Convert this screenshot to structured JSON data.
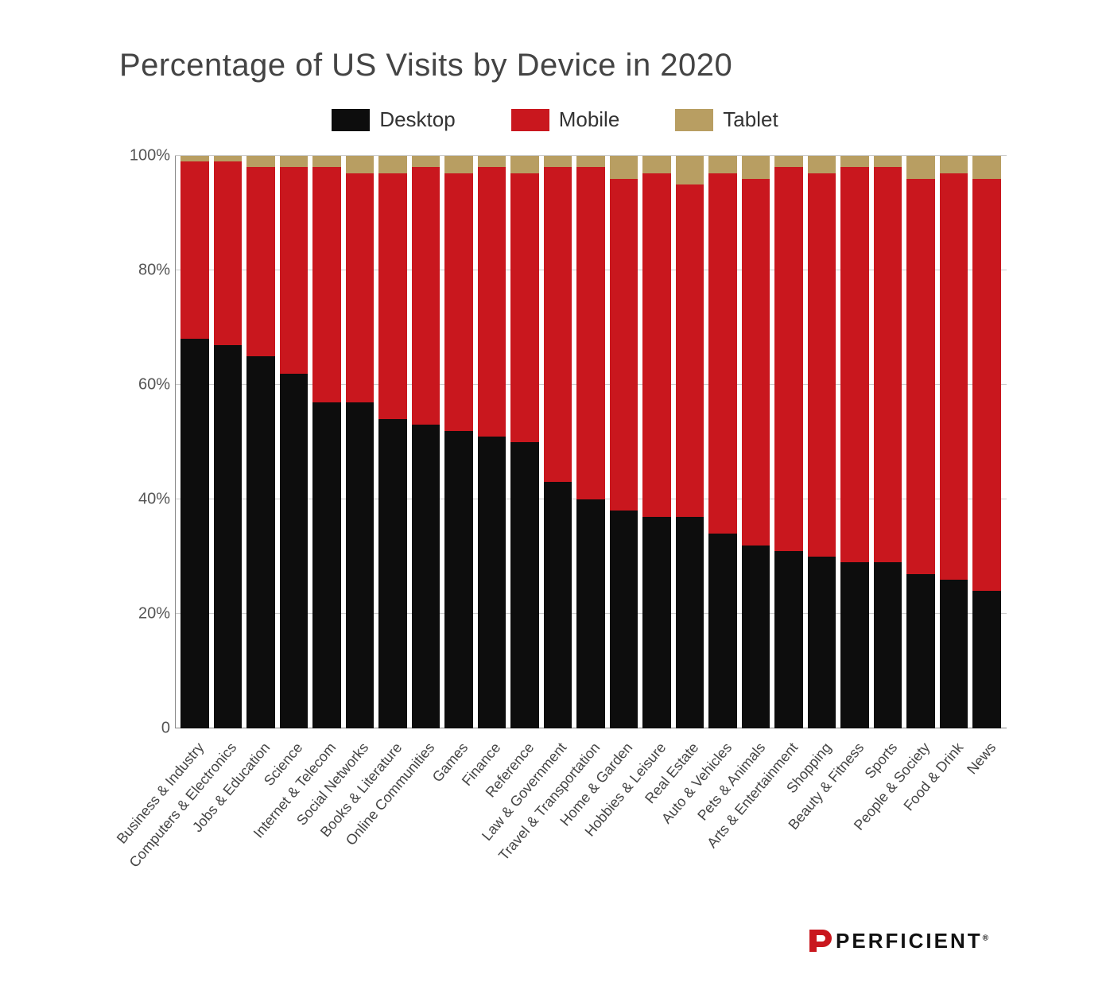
{
  "chart": {
    "type": "stacked-bar",
    "title": "Percentage of US Visits by Device in 2020",
    "title_fontsize": 40,
    "title_color": "#444444",
    "background_color": "#ffffff",
    "grid_color": "#cccccc",
    "axis_color": "#888888",
    "label_fontsize": 18,
    "label_color": "#444444",
    "tick_fontsize": 20,
    "bar_width_ratio": 0.9,
    "ylim": [
      0,
      100
    ],
    "ytick_step": 20,
    "yticks": [
      "0",
      "20%",
      "40%",
      "60%",
      "80%",
      "100%"
    ],
    "x_label_rotation_deg": -50,
    "series": [
      {
        "key": "desktop",
        "label": "Desktop",
        "color": "#0d0d0d"
      },
      {
        "key": "mobile",
        "label": "Mobile",
        "color": "#c9171e"
      },
      {
        "key": "tablet",
        "label": "Tablet",
        "color": "#b89e62"
      }
    ],
    "categories": [
      "Business & Industry",
      "Computers & Electronics",
      "Jobs & Education",
      "Science",
      "Internet & Telecom",
      "Social Networks",
      "Books & Literature",
      "Online Communities",
      "Games",
      "Finance",
      "Reference",
      "Law & Government",
      "Travel & Transportation",
      "Home & Garden",
      "Hobbies & Leisure",
      "Real Estate",
      "Auto & Vehicles",
      "Pets & Animals",
      "Arts & Entertainment",
      "Shopping",
      "Beauty & Fitness",
      "Sports",
      "People & Society",
      "Food & Drink",
      "News"
    ],
    "data": {
      "desktop": [
        68,
        67,
        65,
        62,
        57,
        57,
        54,
        53,
        52,
        51,
        50,
        43,
        40,
        38,
        37,
        37,
        34,
        32,
        31,
        30,
        29,
        29,
        27,
        26,
        24
      ],
      "mobile": [
        31,
        32,
        33,
        36,
        41,
        40,
        43,
        45,
        45,
        47,
        47,
        55,
        58,
        58,
        60,
        58,
        63,
        64,
        67,
        67,
        69,
        69,
        69,
        71,
        72
      ],
      "tablet": [
        1,
        1,
        2,
        2,
        2,
        3,
        3,
        2,
        3,
        2,
        3,
        2,
        2,
        4,
        3,
        5,
        3,
        4,
        2,
        3,
        2,
        2,
        4,
        3,
        4
      ]
    }
  },
  "brand": {
    "name": "PERFICIENT",
    "mark_color": "#c9171e",
    "text_color": "#111111"
  }
}
